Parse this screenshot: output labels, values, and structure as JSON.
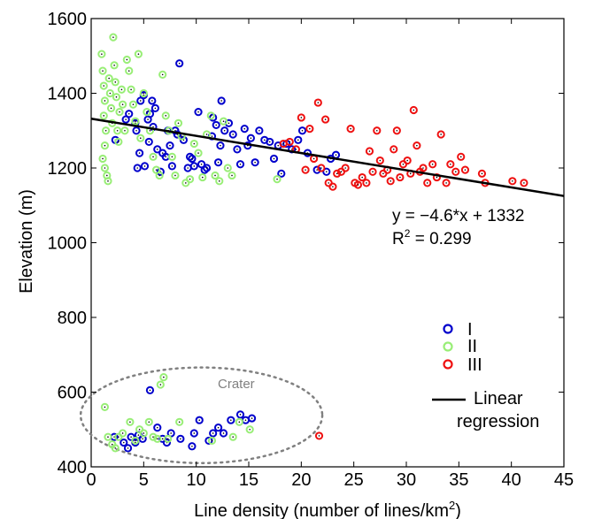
{
  "chart_data": {
    "type": "scatter",
    "xlabel": "Line density (number of lines/km",
    "xlabel_sup": "2",
    "xlabel_end": ")",
    "ylabel": "Elevation (m)",
    "xlim": [
      0,
      45
    ],
    "ylim": [
      400,
      1600
    ],
    "xticks": [
      0,
      5,
      10,
      15,
      20,
      25,
      30,
      35,
      40,
      45
    ],
    "yticks": [
      400,
      600,
      800,
      1000,
      1200,
      1400,
      1600
    ],
    "grid": false,
    "legend_position": "lower-right",
    "colors": {
      "I": "#0000cc",
      "II": "#99ee77",
      "III": "#ee1111",
      "regression": "#000000",
      "crater": "#808080"
    },
    "series": [
      {
        "name": "I",
        "points": [
          [
            2.3,
            1275
          ],
          [
            3.3,
            1330
          ],
          [
            3.6,
            1345
          ],
          [
            4.2,
            1320
          ],
          [
            4.3,
            1300
          ],
          [
            4.4,
            1200
          ],
          [
            4.6,
            1240
          ],
          [
            4.7,
            1380
          ],
          [
            5,
            1395
          ],
          [
            5.1,
            1205
          ],
          [
            5.4,
            1330
          ],
          [
            5.5,
            1270
          ],
          [
            5.6,
            1345
          ],
          [
            5.8,
            1380
          ],
          [
            5.9,
            1310
          ],
          [
            6.1,
            1360
          ],
          [
            6.3,
            1250
          ],
          [
            6.6,
            1190
          ],
          [
            6.8,
            1240
          ],
          [
            7.1,
            1230
          ],
          [
            7.3,
            1300
          ],
          [
            7.5,
            1260
          ],
          [
            7.7,
            1205
          ],
          [
            8,
            1300
          ],
          [
            8.2,
            1290
          ],
          [
            8.4,
            1480
          ],
          [
            8.8,
            1275
          ],
          [
            9.2,
            1200
          ],
          [
            9.4,
            1230
          ],
          [
            9.6,
            1225
          ],
          [
            9.8,
            1205
          ],
          [
            10.2,
            1350
          ],
          [
            10.5,
            1210
          ],
          [
            10.8,
            1195
          ],
          [
            11,
            1200
          ],
          [
            11.5,
            1285
          ],
          [
            11.6,
            1335
          ],
          [
            11.9,
            1315
          ],
          [
            12.1,
            1215
          ],
          [
            12.3,
            1260
          ],
          [
            12.4,
            1380
          ],
          [
            12.7,
            1300
          ],
          [
            13.1,
            1320
          ],
          [
            13.5,
            1290
          ],
          [
            13.9,
            1250
          ],
          [
            14.2,
            1210
          ],
          [
            14.6,
            1305
          ],
          [
            14.9,
            1260
          ],
          [
            15.2,
            1280
          ],
          [
            15.6,
            1215
          ],
          [
            16,
            1300
          ],
          [
            16.5,
            1275
          ],
          [
            17,
            1270
          ],
          [
            17.4,
            1225
          ],
          [
            17.8,
            1260
          ],
          [
            18.1,
            1185
          ],
          [
            18.6,
            1265
          ],
          [
            19.1,
            1250
          ],
          [
            19.7,
            1275
          ],
          [
            20.1,
            1300
          ],
          [
            20.6,
            1240
          ],
          [
            21.5,
            1195
          ],
          [
            22.4,
            1190
          ],
          [
            22.8,
            1225
          ],
          [
            23.3,
            1235
          ],
          [
            2.2,
            480
          ],
          [
            3.1,
            465
          ],
          [
            3.5,
            450
          ],
          [
            3.8,
            480
          ],
          [
            4.2,
            465
          ],
          [
            4.5,
            485
          ],
          [
            4.9,
            475
          ],
          [
            5.6,
            605
          ],
          [
            6.3,
            505
          ],
          [
            6.8,
            475
          ],
          [
            7.2,
            465
          ],
          [
            7.6,
            490
          ],
          [
            8.5,
            475
          ],
          [
            9.6,
            455
          ],
          [
            9.8,
            490
          ],
          [
            10.3,
            525
          ],
          [
            11.2,
            470
          ],
          [
            11.6,
            490
          ],
          [
            12.1,
            505
          ],
          [
            12.6,
            490
          ],
          [
            13.3,
            525
          ],
          [
            14.2,
            540
          ],
          [
            14.7,
            525
          ],
          [
            15.3,
            530
          ]
        ]
      },
      {
        "name": "II",
        "points": [
          [
            1,
            1505
          ],
          [
            1.1,
            1460
          ],
          [
            1.2,
            1420
          ],
          [
            1.3,
            1380
          ],
          [
            1.2,
            1340
          ],
          [
            1.4,
            1300
          ],
          [
            1.3,
            1260
          ],
          [
            1.1,
            1225
          ],
          [
            1.3,
            1200
          ],
          [
            1.5,
            1180
          ],
          [
            1.6,
            1165
          ],
          [
            1.7,
            1440
          ],
          [
            1.8,
            1400
          ],
          [
            1.9,
            1360
          ],
          [
            2,
            1320
          ],
          [
            2.1,
            1550
          ],
          [
            2.2,
            1475
          ],
          [
            2.3,
            1430
          ],
          [
            2.4,
            1390
          ],
          [
            2.5,
            1300
          ],
          [
            2.6,
            1270
          ],
          [
            2.7,
            1350
          ],
          [
            2.9,
            1410
          ],
          [
            3,
            1370
          ],
          [
            3.2,
            1300
          ],
          [
            3.4,
            1490
          ],
          [
            3.6,
            1460
          ],
          [
            3.8,
            1410
          ],
          [
            4,
            1370
          ],
          [
            4.2,
            1325
          ],
          [
            4.5,
            1505
          ],
          [
            4.7,
            1280
          ],
          [
            5,
            1400
          ],
          [
            5.3,
            1350
          ],
          [
            5.6,
            1300
          ],
          [
            5.9,
            1230
          ],
          [
            6.2,
            1195
          ],
          [
            6.5,
            1180
          ],
          [
            6.8,
            1450
          ],
          [
            7.1,
            1340
          ],
          [
            7.4,
            1300
          ],
          [
            7.7,
            1230
          ],
          [
            8,
            1180
          ],
          [
            8.3,
            1320
          ],
          [
            8.6,
            1285
          ],
          [
            9,
            1160
          ],
          [
            9.4,
            1170
          ],
          [
            9.8,
            1265
          ],
          [
            10.2,
            1240
          ],
          [
            10.6,
            1175
          ],
          [
            11,
            1290
          ],
          [
            11.4,
            1340
          ],
          [
            11.8,
            1180
          ],
          [
            12.2,
            1165
          ],
          [
            12.6,
            1325
          ],
          [
            13,
            1200
          ],
          [
            13.4,
            1180
          ],
          [
            17.7,
            1170
          ],
          [
            1.3,
            560
          ],
          [
            1.6,
            480
          ],
          [
            2,
            460
          ],
          [
            2.3,
            450
          ],
          [
            2.6,
            480
          ],
          [
            3,
            490
          ],
          [
            3.7,
            520
          ],
          [
            4.2,
            470
          ],
          [
            4.6,
            500
          ],
          [
            5,
            490
          ],
          [
            5.5,
            520
          ],
          [
            5.9,
            480
          ],
          [
            6.3,
            475
          ],
          [
            6.6,
            620
          ],
          [
            6.9,
            640
          ],
          [
            7.3,
            475
          ],
          [
            8.4,
            520
          ],
          [
            11.5,
            470
          ],
          [
            13.5,
            480
          ],
          [
            14.1,
            520
          ],
          [
            15.1,
            500
          ]
        ]
      },
      {
        "name": "III",
        "points": [
          [
            18.3,
            1265
          ],
          [
            18.9,
            1270
          ],
          [
            19.5,
            1250
          ],
          [
            20,
            1335
          ],
          [
            20.4,
            1195
          ],
          [
            20.8,
            1305
          ],
          [
            21.2,
            1225
          ],
          [
            21.6,
            1375
          ],
          [
            21.9,
            1200
          ],
          [
            22.3,
            1330
          ],
          [
            22.6,
            1160
          ],
          [
            23,
            1150
          ],
          [
            23.4,
            1185
          ],
          [
            23.8,
            1190
          ],
          [
            24.2,
            1200
          ],
          [
            24.7,
            1305
          ],
          [
            25.1,
            1160
          ],
          [
            25.4,
            1155
          ],
          [
            25.8,
            1175
          ],
          [
            26.2,
            1160
          ],
          [
            26.5,
            1245
          ],
          [
            26.8,
            1190
          ],
          [
            27.2,
            1300
          ],
          [
            27.5,
            1220
          ],
          [
            27.8,
            1185
          ],
          [
            28.2,
            1195
          ],
          [
            28.5,
            1165
          ],
          [
            28.8,
            1250
          ],
          [
            29.1,
            1300
          ],
          [
            29.4,
            1175
          ],
          [
            29.7,
            1210
          ],
          [
            30.1,
            1220
          ],
          [
            30.4,
            1185
          ],
          [
            30.7,
            1355
          ],
          [
            31,
            1260
          ],
          [
            31.3,
            1190
          ],
          [
            31.6,
            1200
          ],
          [
            32,
            1160
          ],
          [
            32.5,
            1210
          ],
          [
            32.9,
            1175
          ],
          [
            33.3,
            1290
          ],
          [
            33.8,
            1160
          ],
          [
            34.2,
            1210
          ],
          [
            34.7,
            1190
          ],
          [
            35.2,
            1230
          ],
          [
            35.6,
            1195
          ],
          [
            37.2,
            1185
          ],
          [
            37.5,
            1160
          ],
          [
            40.1,
            1165
          ],
          [
            41.2,
            1160
          ],
          [
            21.7,
            483
          ]
        ]
      }
    ],
    "regression": {
      "label": "Linear regression",
      "label_lines": [
        "Linear",
        "regression"
      ],
      "slope": -4.6,
      "intercept": 1332,
      "x_range": [
        0,
        45
      ],
      "equation": "y = −4.6*x + 1332",
      "r2_prefix": "R",
      "r2_sup": "2",
      "r2_suffix": " = 0.299"
    },
    "crater": {
      "label": "Crater",
      "center": [
        10.5,
        538
      ],
      "radius": [
        11.5,
        128
      ]
    }
  }
}
